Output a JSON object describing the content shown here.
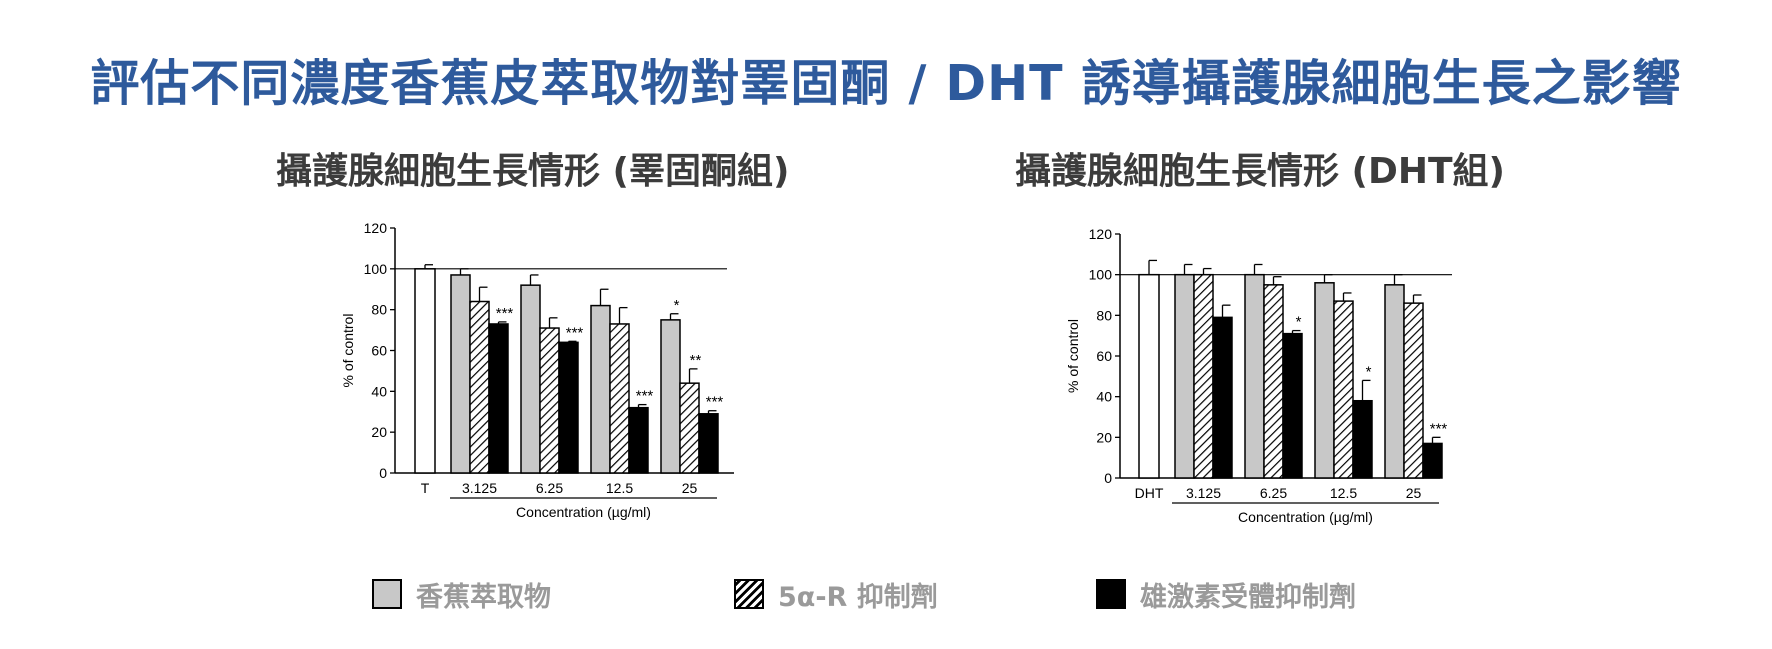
{
  "page": {
    "title": "評估不同濃度香蕉皮萃取物對睪固酮 / DHT 誘導攝護腺細胞生長之影響"
  },
  "legend": [
    {
      "key": "extract",
      "label": "香蕉萃取物",
      "pattern": "gray",
      "color": "#c8c8c8"
    },
    {
      "key": "inhibitor5ar",
      "label": "5α-R 抑制劑",
      "pattern": "hatch",
      "color": "#ffffff"
    },
    {
      "key": "androgen",
      "label": "雄激素受體抑制劑",
      "pattern": "solid",
      "color": "#000000"
    }
  ],
  "chart_data": [
    {
      "type": "bar",
      "title": "攝護腺細胞生長情形 (睪固酮組)",
      "ylabel": "% of control",
      "xlabel": "Concentration (µg/ml)",
      "ylim": [
        0,
        120
      ],
      "yticks": [
        0,
        20,
        40,
        60,
        80,
        100,
        120
      ],
      "reference_line": 100,
      "control": {
        "label": "T",
        "value": 100,
        "error": 2
      },
      "categories": [
        "3.125",
        "6.25",
        "12.5",
        "25"
      ],
      "series": [
        {
          "key": "extract",
          "values": [
            97,
            92,
            82,
            75
          ],
          "errors": [
            3,
            5,
            8,
            3
          ],
          "significance": [
            "",
            "",
            "",
            "*"
          ]
        },
        {
          "key": "inhibitor5ar",
          "values": [
            84,
            71,
            73,
            44
          ],
          "errors": [
            7,
            5,
            8,
            7
          ],
          "significance": [
            "",
            "",
            "",
            "**"
          ]
        },
        {
          "key": "androgen",
          "values": [
            73,
            64,
            32,
            29
          ],
          "errors": [
            1,
            0.5,
            1.5,
            1.5
          ],
          "significance": [
            "***",
            "***",
            "***",
            "***"
          ]
        }
      ]
    },
    {
      "type": "bar",
      "title": "攝護腺細胞生長情形 (DHT組)",
      "ylabel": "% of control",
      "xlabel": "Concentration (µg/ml)",
      "ylim": [
        0,
        120
      ],
      "yticks": [
        0,
        20,
        40,
        60,
        80,
        100,
        120
      ],
      "reference_line": 100,
      "control": {
        "label": "DHT",
        "value": 100,
        "error": 7
      },
      "categories": [
        "3.125",
        "6.25",
        "12.5",
        "25"
      ],
      "series": [
        {
          "key": "extract",
          "values": [
            100,
            100,
            96,
            95
          ],
          "errors": [
            5,
            5,
            4,
            5
          ],
          "significance": [
            "",
            "",
            "",
            ""
          ]
        },
        {
          "key": "inhibitor5ar",
          "values": [
            100,
            95,
            87,
            86
          ],
          "errors": [
            3,
            4,
            4,
            4
          ],
          "significance": [
            "",
            "",
            "",
            ""
          ]
        },
        {
          "key": "androgen",
          "values": [
            79,
            71,
            38,
            17
          ],
          "errors": [
            6,
            1.5,
            10,
            3
          ],
          "significance": [
            "",
            "*",
            "*",
            "***"
          ]
        }
      ]
    }
  ]
}
